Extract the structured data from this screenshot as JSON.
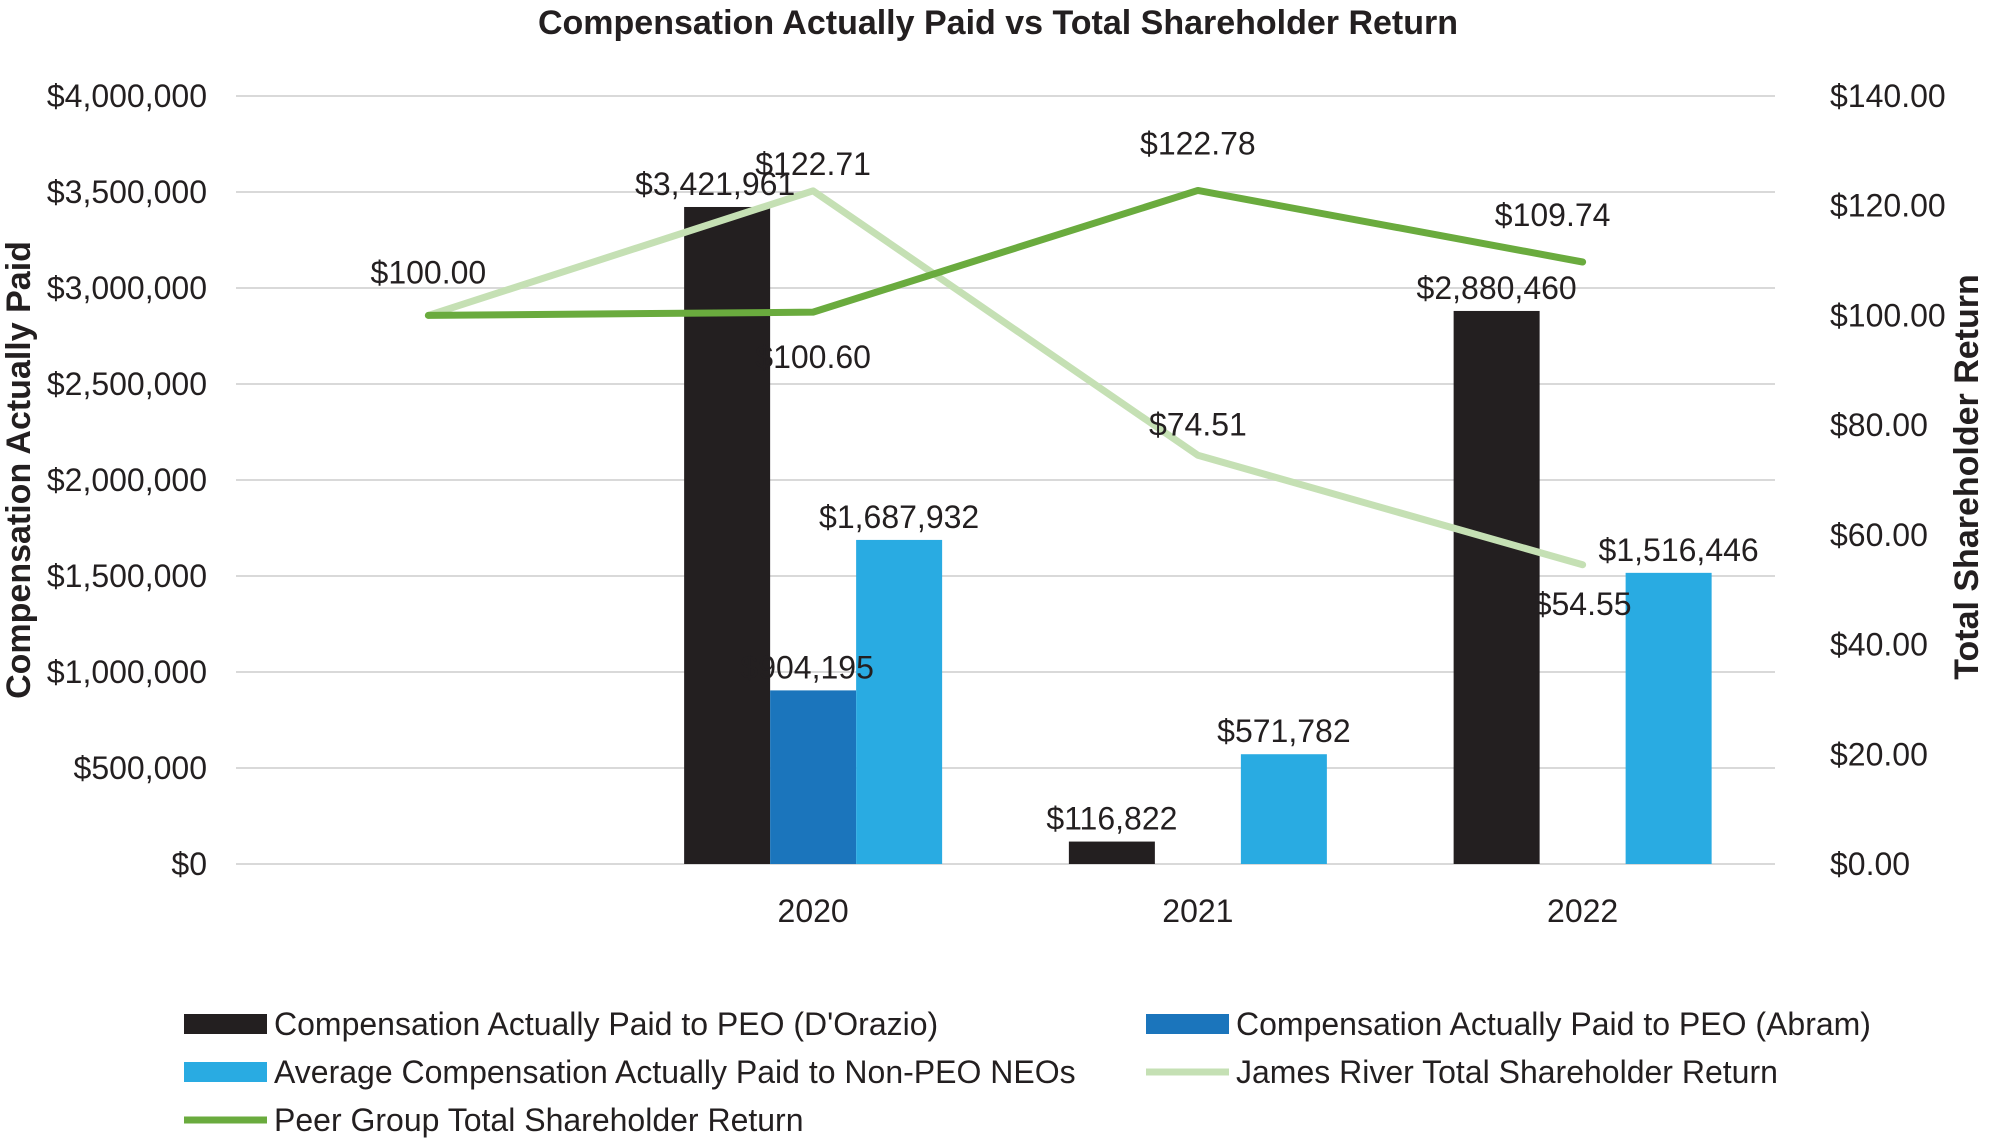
{
  "chart_data": {
    "type": "bar",
    "title": "Compensation Actually Paid vs Total Shareholder Return",
    "y_left_label": "Compensation Actually Paid",
    "y_right_label": "Total Shareholder Return",
    "y_left_range": [
      0,
      4000000
    ],
    "y_right_range": [
      0,
      140
    ],
    "y_left_ticks": [
      "$0",
      "$500,000",
      "$1,000,000",
      "$1,500,000",
      "$2,000,000",
      "$2,500,000",
      "$3,000,000",
      "$3,500,000",
      "$4,000,000"
    ],
    "y_right_ticks": [
      "$0.00",
      "$20.00",
      "$40.00",
      "$60.00",
      "$80.00",
      "$100.00",
      "$120.00",
      "$140.00"
    ],
    "x_points": [
      "",
      "2020",
      "2021",
      "2022"
    ],
    "categories": [
      "2020",
      "2021",
      "2022"
    ],
    "grid": true,
    "legend_position": "bottom",
    "bar_series": [
      {
        "name": "Compensation Actually Paid to PEO (D'Orazio)",
        "color": "#231f20",
        "values": [
          3421961,
          116822,
          2880460
        ],
        "labels": [
          "$3,421,961",
          "$116,822",
          "$2,880,460"
        ]
      },
      {
        "name": "Compensation Actually Paid to PEO (Abram)",
        "color": "#1b75bc",
        "values": [
          904195,
          null,
          null
        ],
        "labels": [
          "$904,195",
          "",
          ""
        ]
      },
      {
        "name": "Average Compensation Actually Paid to Non-PEO NEOs",
        "color": "#29abe2",
        "values": [
          1687932,
          571782,
          1516446
        ],
        "labels": [
          "$1,687,932",
          "$571,782",
          "$1,516,446"
        ]
      }
    ],
    "line_series": [
      {
        "name": "James River Total Shareholder Return",
        "color": "#c5e0b4",
        "values": [
          100.0,
          122.71,
          74.51,
          54.55
        ],
        "labels": [
          "",
          "$122.71",
          "$74.51",
          "$54.55"
        ]
      },
      {
        "name": "Peer Group Total Shareholder Return",
        "color": "#6aab3e",
        "values": [
          100.0,
          100.6,
          122.78,
          109.74
        ],
        "labels": [
          "$100.00",
          "$100.60",
          "$122.78",
          "$109.74"
        ]
      }
    ],
    "legend_order": [
      "Compensation Actually Paid to PEO (D'Orazio)",
      "Compensation Actually Paid to PEO (Abram)",
      "Average Compensation Actually Paid to Non-PEO NEOs",
      "James River Total Shareholder Return",
      "Peer Group Total Shareholder Return"
    ]
  }
}
